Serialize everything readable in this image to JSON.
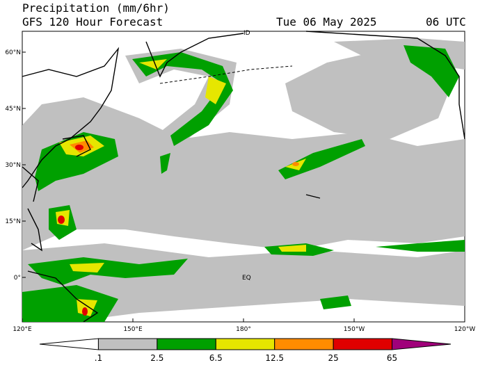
{
  "header": {
    "title": "Precipitation (mm/6hr)",
    "subtitle": "GFS 120 Hour Forecast",
    "date": "Tue 06 May 2025",
    "time": "06 UTC"
  },
  "map": {
    "lat_labels": [
      "60°N",
      "45°N",
      "30°N",
      "15°N",
      "0°"
    ],
    "lon_labels": [
      "120°E",
      "150°E",
      "180°",
      "150°W",
      "120°W"
    ],
    "markers": [
      "ID",
      "EQ"
    ]
  },
  "colorbar": {
    "labels": [
      ".1",
      "2.5",
      "6.5",
      "12.5",
      "25",
      "65"
    ],
    "colors": [
      "#ffffff",
      "#c0c0c0",
      "#00a000",
      "#e6e600",
      "#ff8c00",
      "#e00000",
      "#a0007a"
    ]
  }
}
